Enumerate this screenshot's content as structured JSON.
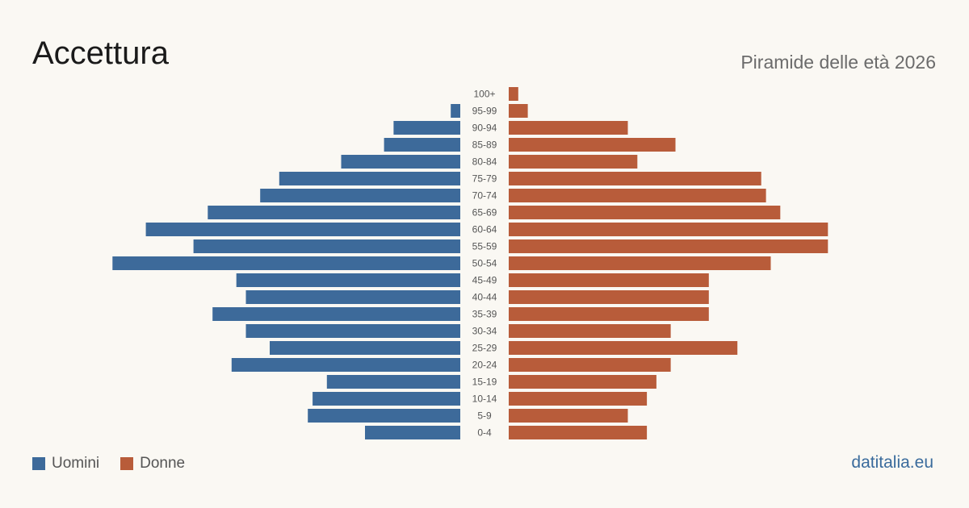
{
  "header": {
    "title": "Accettura",
    "subtitle": "Piramide delle età 2026"
  },
  "legend": {
    "men_label": "Uomini",
    "women_label": "Donne"
  },
  "source": "datitalia.eu",
  "colors": {
    "men": "#3d6a9a",
    "women": "#b85c3a",
    "background": "#faf8f3"
  },
  "chart_data": {
    "type": "bar",
    "orientation": "horizontal-pyramid",
    "categories": [
      "100+",
      "95-99",
      "90-94",
      "85-89",
      "80-84",
      "75-79",
      "70-74",
      "65-69",
      "60-64",
      "55-59",
      "50-54",
      "45-49",
      "40-44",
      "35-39",
      "30-34",
      "25-29",
      "20-24",
      "15-19",
      "10-14",
      "5-9",
      "0-4"
    ],
    "series": [
      {
        "name": "Uomini",
        "values": [
          0,
          2,
          14,
          16,
          25,
          38,
          42,
          53,
          66,
          56,
          73,
          47,
          45,
          52,
          45,
          40,
          48,
          28,
          31,
          32,
          20
        ]
      },
      {
        "name": "Donne",
        "values": [
          2,
          4,
          25,
          35,
          27,
          53,
          54,
          57,
          67,
          67,
          55,
          42,
          42,
          42,
          34,
          48,
          34,
          31,
          29,
          25,
          29
        ]
      }
    ],
    "xlim": [
      0,
      75
    ]
  }
}
